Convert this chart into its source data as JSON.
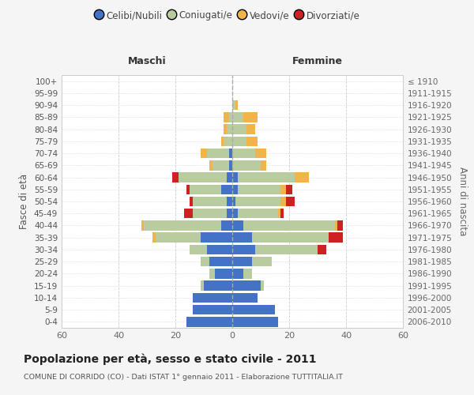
{
  "age_groups": [
    "0-4",
    "5-9",
    "10-14",
    "15-19",
    "20-24",
    "25-29",
    "30-34",
    "35-39",
    "40-44",
    "45-49",
    "50-54",
    "55-59",
    "60-64",
    "65-69",
    "70-74",
    "75-79",
    "80-84",
    "85-89",
    "90-94",
    "95-99",
    "100+"
  ],
  "birth_years": [
    "2006-2010",
    "2001-2005",
    "1996-2000",
    "1991-1995",
    "1986-1990",
    "1981-1985",
    "1976-1980",
    "1971-1975",
    "1966-1970",
    "1961-1965",
    "1956-1960",
    "1951-1955",
    "1946-1950",
    "1941-1945",
    "1936-1940",
    "1931-1935",
    "1926-1930",
    "1921-1925",
    "1916-1920",
    "1911-1915",
    "≤ 1910"
  ],
  "males": {
    "celibi": [
      16,
      14,
      14,
      10,
      6,
      8,
      9,
      11,
      4,
      2,
      2,
      4,
      2,
      1,
      1,
      0,
      0,
      0,
      0,
      0,
      0
    ],
    "coniugati": [
      0,
      0,
      0,
      1,
      2,
      3,
      6,
      16,
      27,
      12,
      12,
      11,
      17,
      6,
      8,
      3,
      2,
      1,
      0,
      0,
      0
    ],
    "vedovi": [
      0,
      0,
      0,
      0,
      0,
      0,
      0,
      1,
      1,
      0,
      0,
      0,
      0,
      1,
      2,
      1,
      1,
      2,
      0,
      0,
      0
    ],
    "divorziati": [
      0,
      0,
      0,
      0,
      0,
      0,
      0,
      0,
      0,
      3,
      1,
      1,
      2,
      0,
      0,
      0,
      0,
      0,
      0,
      0,
      0
    ]
  },
  "females": {
    "nubili": [
      16,
      15,
      9,
      10,
      4,
      7,
      8,
      7,
      4,
      2,
      1,
      2,
      2,
      0,
      0,
      0,
      0,
      0,
      0,
      0,
      0
    ],
    "coniugate": [
      0,
      0,
      0,
      1,
      3,
      7,
      22,
      27,
      32,
      14,
      16,
      15,
      20,
      10,
      8,
      5,
      5,
      4,
      1,
      0,
      0
    ],
    "vedove": [
      0,
      0,
      0,
      0,
      0,
      0,
      0,
      0,
      1,
      1,
      2,
      2,
      5,
      2,
      4,
      4,
      3,
      5,
      1,
      0,
      0
    ],
    "divorziate": [
      0,
      0,
      0,
      0,
      0,
      0,
      3,
      5,
      2,
      1,
      3,
      2,
      0,
      0,
      0,
      0,
      0,
      0,
      0,
      0,
      0
    ]
  },
  "colors": {
    "celibi": "#4472c4",
    "coniugati": "#b8cca0",
    "vedovi": "#f0b44a",
    "divorziati": "#cc2222"
  },
  "xlim": 60,
  "title": "Popolazione per età, sesso e stato civile - 2011",
  "subtitle": "COMUNE DI CORRIDO (CO) - Dati ISTAT 1° gennaio 2011 - Elaborazione TUTTITALIA.IT",
  "xlabel_left": "Maschi",
  "xlabel_right": "Femmine",
  "ylabel": "Fasce di età",
  "ylabel_right": "Anni di nascita",
  "legend_labels": [
    "Celibi/Nubili",
    "Coniugati/e",
    "Vedovi/e",
    "Divorziati/e"
  ],
  "bg_color": "#f5f5f5",
  "plot_bg": "#ffffff"
}
